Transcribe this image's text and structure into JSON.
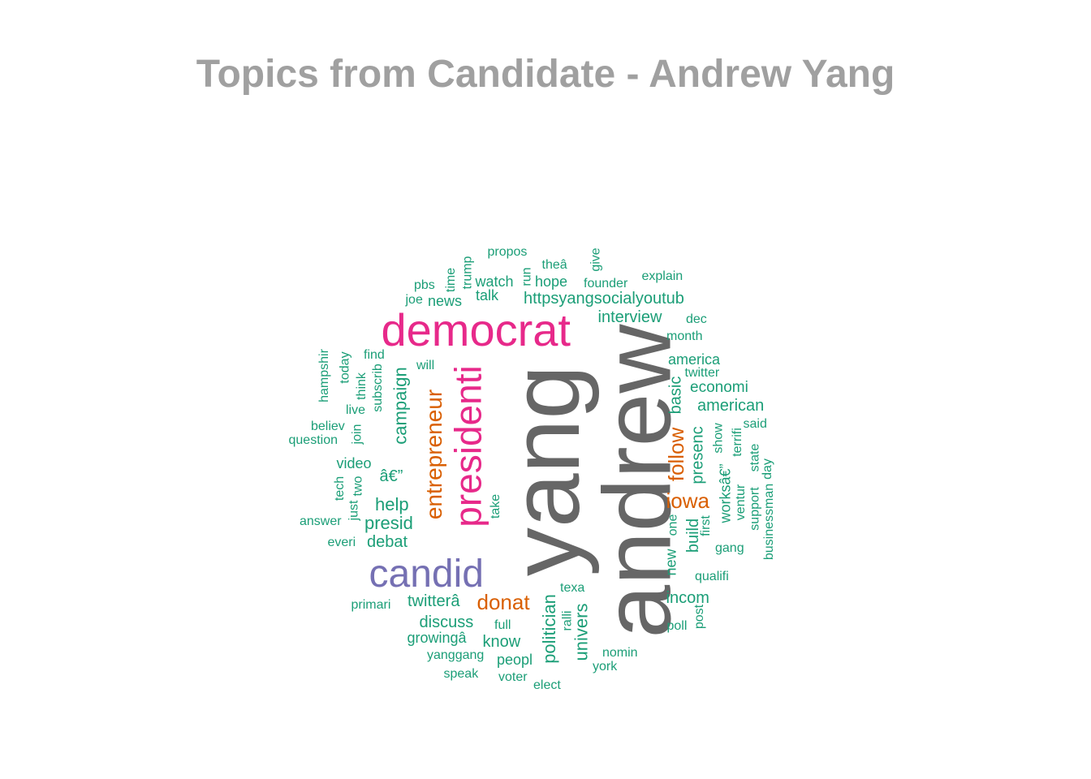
{
  "title": "Topics from Candidate - Andrew Yang",
  "colors": {
    "title": "#a0a0a0",
    "gray": "#666666",
    "pink": "#e7298a",
    "purple": "#7570b3",
    "orange": "#d95f02",
    "green": "#1b9e77"
  },
  "words": [
    {
      "text": "andrew",
      "color": "gray"
    },
    {
      "text": "yang",
      "color": "gray"
    },
    {
      "text": "democrat",
      "color": "pink"
    },
    {
      "text": "presidenti",
      "color": "pink"
    },
    {
      "text": "candid",
      "color": "purple"
    },
    {
      "text": "entrepreneur",
      "color": "orange"
    },
    {
      "text": "donat",
      "color": "orange"
    },
    {
      "text": "follow",
      "color": "orange"
    },
    {
      "text": "iowa",
      "color": "orange"
    },
    {
      "text": "propos",
      "color": "green"
    },
    {
      "text": "trump",
      "color": "green"
    },
    {
      "text": "time",
      "color": "green"
    },
    {
      "text": "run",
      "color": "green"
    },
    {
      "text": "theâ",
      "color": "green"
    },
    {
      "text": "give",
      "color": "green"
    },
    {
      "text": "pbs",
      "color": "green"
    },
    {
      "text": "watch",
      "color": "green"
    },
    {
      "text": "hope",
      "color": "green"
    },
    {
      "text": "founder",
      "color": "green"
    },
    {
      "text": "explain",
      "color": "green"
    },
    {
      "text": "joe",
      "color": "green"
    },
    {
      "text": "news",
      "color": "green"
    },
    {
      "text": "talk",
      "color": "green"
    },
    {
      "text": "httpsyangsocialyoutub",
      "color": "green"
    },
    {
      "text": "interview",
      "color": "green"
    },
    {
      "text": "dec",
      "color": "green"
    },
    {
      "text": "month",
      "color": "green"
    },
    {
      "text": "hampshir",
      "color": "green"
    },
    {
      "text": "today",
      "color": "green"
    },
    {
      "text": "find",
      "color": "green"
    },
    {
      "text": "think",
      "color": "green"
    },
    {
      "text": "subscrib",
      "color": "green"
    },
    {
      "text": "campaign",
      "color": "green"
    },
    {
      "text": "will",
      "color": "green"
    },
    {
      "text": "america",
      "color": "green"
    },
    {
      "text": "twitter",
      "color": "green"
    },
    {
      "text": "basic",
      "color": "green"
    },
    {
      "text": "economi",
      "color": "green"
    },
    {
      "text": "american",
      "color": "green"
    },
    {
      "text": "live",
      "color": "green"
    },
    {
      "text": "believ",
      "color": "green"
    },
    {
      "text": "join",
      "color": "green"
    },
    {
      "text": "question",
      "color": "green"
    },
    {
      "text": "said",
      "color": "green"
    },
    {
      "text": "show",
      "color": "green"
    },
    {
      "text": "terrifi",
      "color": "green"
    },
    {
      "text": "presenc",
      "color": "green"
    },
    {
      "text": "video",
      "color": "green"
    },
    {
      "text": "â€”",
      "color": "green"
    },
    {
      "text": "state",
      "color": "green"
    },
    {
      "text": "day",
      "color": "green"
    },
    {
      "text": "tech",
      "color": "green"
    },
    {
      "text": "two",
      "color": "green"
    },
    {
      "text": "worksâ€”",
      "color": "green"
    },
    {
      "text": "ventur",
      "color": "green"
    },
    {
      "text": "support",
      "color": "green"
    },
    {
      "text": "help",
      "color": "green"
    },
    {
      "text": "take",
      "color": "green"
    },
    {
      "text": "just",
      "color": "green"
    },
    {
      "text": "answer",
      "color": "green"
    },
    {
      "text": "presid",
      "color": "green"
    },
    {
      "text": "one",
      "color": "green"
    },
    {
      "text": "first",
      "color": "green"
    },
    {
      "text": "businessman",
      "color": "green"
    },
    {
      "text": "build",
      "color": "green"
    },
    {
      "text": "everi",
      "color": "green"
    },
    {
      "text": "debat",
      "color": "green"
    },
    {
      "text": "gang",
      "color": "green"
    },
    {
      "text": "new",
      "color": "green"
    },
    {
      "text": "qualifi",
      "color": "green"
    },
    {
      "text": "texa",
      "color": "green"
    },
    {
      "text": "primari",
      "color": "green"
    },
    {
      "text": "twitterâ",
      "color": "green"
    },
    {
      "text": "incom",
      "color": "green"
    },
    {
      "text": "politician",
      "color": "green"
    },
    {
      "text": "ralli",
      "color": "green"
    },
    {
      "text": "univers",
      "color": "green"
    },
    {
      "text": "post",
      "color": "green"
    },
    {
      "text": "discuss",
      "color": "green"
    },
    {
      "text": "full",
      "color": "green"
    },
    {
      "text": "poll",
      "color": "green"
    },
    {
      "text": "growingâ",
      "color": "green"
    },
    {
      "text": "know",
      "color": "green"
    },
    {
      "text": "nomin",
      "color": "green"
    },
    {
      "text": "yanggang",
      "color": "green"
    },
    {
      "text": "peopl",
      "color": "green"
    },
    {
      "text": "york",
      "color": "green"
    },
    {
      "text": "speak",
      "color": "green"
    },
    {
      "text": "voter",
      "color": "green"
    },
    {
      "text": "elect",
      "color": "green"
    }
  ]
}
